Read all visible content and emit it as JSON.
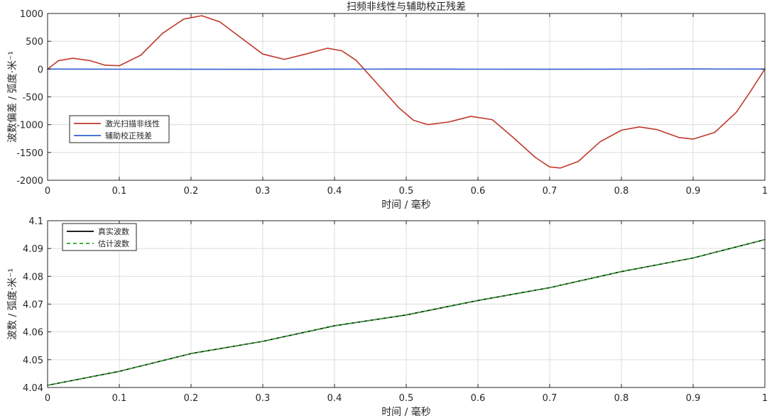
{
  "chart_data": [
    {
      "type": "line",
      "title": "扫频非线性与辅助校正残差",
      "xlabel": "时间 / 毫秒",
      "ylabel": "波数偏差 / 弧度·米⁻¹",
      "xlim": [
        0,
        1
      ],
      "ylim": [
        -2000,
        1000
      ],
      "xticks": [
        0,
        0.1,
        0.2,
        0.3,
        0.4,
        0.5,
        0.6,
        0.7,
        0.8,
        0.9,
        1
      ],
      "yticks": [
        -2000,
        -1500,
        -1000,
        -500,
        0,
        500,
        1000
      ],
      "xticklabels": [
        "0",
        "0.1",
        "0.2",
        "0.3",
        "0.4",
        "0.5",
        "0.6",
        "0.7",
        "0.8",
        "0.9",
        "1"
      ],
      "yticklabels": [
        "-2000",
        "-1500",
        "-1000",
        "-500",
        "0",
        "500",
        "1000"
      ],
      "grid": true,
      "legend_position": "center-left",
      "series": [
        {
          "name": "激光扫描非线性",
          "color": "#c0392b",
          "style": "solid",
          "x": [
            0,
            0.015,
            0.035,
            0.06,
            0.08,
            0.1,
            0.13,
            0.16,
            0.19,
            0.215,
            0.24,
            0.27,
            0.3,
            0.33,
            0.36,
            0.39,
            0.41,
            0.43,
            0.46,
            0.49,
            0.51,
            0.53,
            0.56,
            0.59,
            0.62,
            0.65,
            0.68,
            0.7,
            0.715,
            0.74,
            0.77,
            0.8,
            0.825,
            0.85,
            0.88,
            0.9,
            0.93,
            0.96,
            0.98,
            1
          ],
          "y": [
            0,
            150,
            195,
            150,
            70,
            60,
            250,
            640,
            900,
            960,
            850,
            560,
            270,
            175,
            270,
            375,
            330,
            160,
            -270,
            -700,
            -920,
            -1000,
            -950,
            -850,
            -910,
            -1240,
            -1590,
            -1760,
            -1780,
            -1660,
            -1310,
            -1100,
            -1040,
            -1090,
            -1230,
            -1260,
            -1140,
            -780,
            -400,
            0
          ]
        },
        {
          "name": "辅助校正残差",
          "color": "#2f5fd0",
          "style": "solid",
          "x": [
            0,
            0.1,
            0.2,
            0.3,
            0.4,
            0.5,
            0.6,
            0.7,
            0.8,
            0.9,
            1
          ],
          "y": [
            0,
            -2,
            -3,
            -4,
            -1,
            0,
            -2,
            -3,
            -1,
            2,
            0
          ]
        }
      ]
    },
    {
      "type": "line",
      "title": "",
      "xlabel": "时间 / 毫秒",
      "ylabel": "波数 / 弧度·米⁻¹",
      "xlim": [
        0,
        1
      ],
      "ylim": [
        4.04,
        4.1
      ],
      "xticks": [
        0,
        0.1,
        0.2,
        0.3,
        0.4,
        0.5,
        0.6,
        0.7,
        0.8,
        0.9,
        1
      ],
      "yticks": [
        4.04,
        4.05,
        4.06,
        4.07,
        4.08,
        4.09,
        4.1
      ],
      "xticklabels": [
        "0",
        "0.1",
        "0.2",
        "0.3",
        "0.4",
        "0.5",
        "0.6",
        "0.7",
        "0.8",
        "0.9",
        "1"
      ],
      "yticklabels": [
        "4.04",
        "4.05",
        "4.06",
        "4.07",
        "4.08",
        "4.09",
        "4.1"
      ],
      "grid": true,
      "legend_position": "top-left",
      "series": [
        {
          "name": "真实波数",
          "color": "#000000",
          "style": "solid",
          "x": [
            0,
            0.1,
            0.2,
            0.3,
            0.4,
            0.5,
            0.6,
            0.7,
            0.8,
            0.9,
            1
          ],
          "y": [
            4.0408,
            4.0458,
            4.0522,
            4.0566,
            4.0622,
            4.0661,
            4.0713,
            4.0759,
            4.0817,
            4.0866,
            4.0932
          ]
        },
        {
          "name": "估计波数",
          "color": "#2ca02c",
          "style": "dashed",
          "x": [
            0,
            0.1,
            0.2,
            0.3,
            0.4,
            0.5,
            0.6,
            0.7,
            0.8,
            0.9,
            1
          ],
          "y": [
            4.0408,
            4.0458,
            4.0522,
            4.0566,
            4.0622,
            4.0661,
            4.0713,
            4.0759,
            4.0817,
            4.0866,
            4.0932
          ]
        }
      ]
    }
  ]
}
